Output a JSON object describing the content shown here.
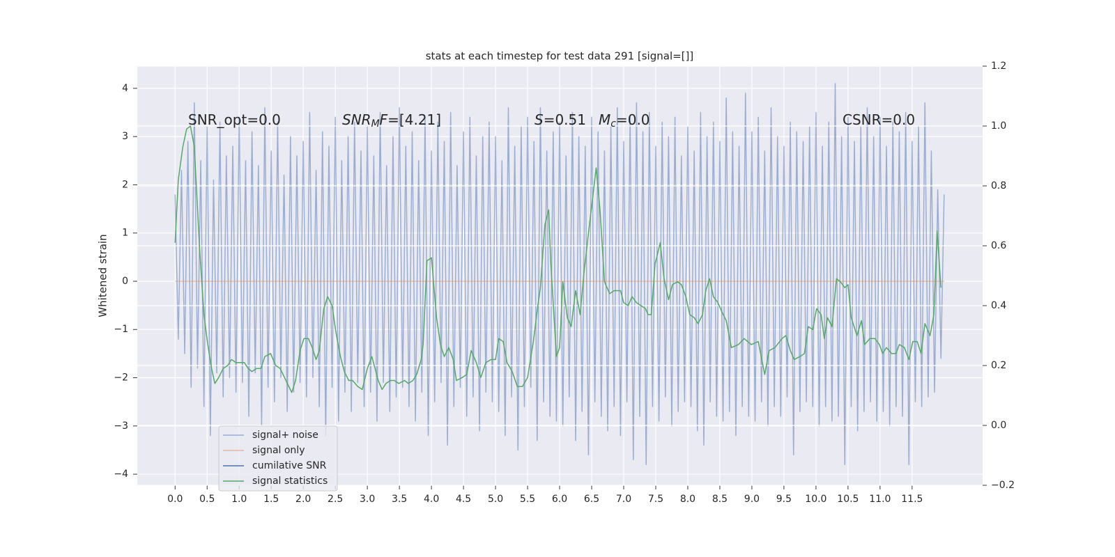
{
  "chart_data": {
    "type": "line",
    "title": "stats at each timestep for test data 291 [signal=[]]",
    "ylabel": "Whitened strain",
    "xlim": [
      -0.59,
      12.6
    ],
    "ylim": [
      -4.23,
      4.46
    ],
    "y2lim": [
      -0.2,
      1.2
    ],
    "xticks": [
      {
        "value": 0,
        "label": "0.0"
      },
      0.5,
      {
        "value": 1,
        "label": "1.0"
      },
      1.5,
      {
        "value": 2,
        "label": "2.0"
      },
      2.5,
      {
        "value": 3,
        "label": "3.0"
      },
      3.5,
      {
        "value": 4,
        "label": "4.0"
      },
      4.5,
      {
        "value": 5,
        "label": "5.0"
      },
      5.5,
      {
        "value": 6,
        "label": "6.0"
      },
      6.5,
      {
        "value": 7,
        "label": "7.0"
      },
      7.5,
      {
        "value": 8,
        "label": "8.0"
      },
      8.5,
      {
        "value": 9,
        "label": "9.0"
      },
      9.5,
      {
        "value": 10,
        "label": "10.0"
      },
      10.5,
      {
        "value": 11,
        "label": "11.0"
      },
      11.5
    ],
    "yticks": [
      {
        "value": -4,
        "label": "−4"
      },
      {
        "value": -3,
        "label": "−3"
      },
      {
        "value": -2,
        "label": "−2"
      },
      {
        "value": -1,
        "label": "−1"
      },
      0,
      1,
      2,
      3,
      4
    ],
    "y2ticks": [
      {
        "value": -0.2,
        "label": "−0.2"
      },
      {
        "value": 0,
        "label": "0.0"
      },
      0.2,
      0.4,
      0.6,
      0.8,
      {
        "value": 1,
        "label": "1.0"
      },
      1.2
    ],
    "grid": true,
    "legend_loc": "lower left",
    "annotations": [
      {
        "parts": [
          {
            "text": "SNR_opt=0.0",
            "style": "normal"
          }
        ]
      },
      {
        "parts": [
          {
            "text": "SNR",
            "style": "italic"
          },
          {
            "text": "M",
            "style": "sub"
          },
          {
            "text": "F",
            "style": "italic"
          },
          {
            "text": "=[4.21]",
            "style": "normal"
          }
        ]
      },
      {
        "parts": [
          {
            "text": "S",
            "style": "italic"
          },
          {
            "text": "=0.51",
            "style": "normal"
          }
        ]
      },
      {
        "parts": [
          {
            "text": "M",
            "style": "italic"
          },
          {
            "text": "c",
            "style": "sub"
          },
          {
            "text": "=0.0",
            "style": "normal"
          }
        ]
      },
      {
        "parts": [
          {
            "text": "CSNR=0.0",
            "style": "normal"
          }
        ]
      }
    ],
    "series": [
      {
        "name": "signal+ noise",
        "color": "#4c72b0",
        "alpha": 0.5,
        "axis": "y",
        "x": [
          0,
          0.05,
          0.1,
          0.15,
          0.2,
          0.25,
          0.3,
          0.35,
          0.4,
          0.45,
          0.5,
          0.55,
          0.6,
          0.65,
          0.7,
          0.75,
          0.8,
          0.85,
          0.9,
          0.95,
          1,
          1.05,
          1.1,
          1.15,
          1.2,
          1.25,
          1.3,
          1.35,
          1.4,
          1.45,
          1.5,
          1.55,
          1.6,
          1.65,
          1.7,
          1.75,
          1.8,
          1.85,
          1.9,
          1.95,
          2,
          2.05,
          2.1,
          2.15,
          2.2,
          2.25,
          2.3,
          2.35,
          2.4,
          2.45,
          2.5,
          2.55,
          2.6,
          2.65,
          2.7,
          2.75,
          2.8,
          2.85,
          2.9,
          2.95,
          3,
          3.05,
          3.1,
          3.15,
          3.2,
          3.25,
          3.3,
          3.35,
          3.4,
          3.45,
          3.5,
          3.55,
          3.6,
          3.65,
          3.7,
          3.75,
          3.8,
          3.85,
          3.9,
          3.95,
          4,
          4.05,
          4.1,
          4.15,
          4.2,
          4.25,
          4.3,
          4.35,
          4.4,
          4.45,
          4.5,
          4.55,
          4.6,
          4.65,
          4.7,
          4.75,
          4.8,
          4.85,
          4.9,
          4.95,
          5,
          5.05,
          5.1,
          5.15,
          5.2,
          5.25,
          5.3,
          5.35,
          5.4,
          5.45,
          5.5,
          5.55,
          5.6,
          5.65,
          5.7,
          5.75,
          5.8,
          5.85,
          5.9,
          5.95,
          6,
          6.05,
          6.1,
          6.15,
          6.2,
          6.25,
          6.3,
          6.35,
          6.4,
          6.45,
          6.5,
          6.55,
          6.6,
          6.65,
          6.7,
          6.75,
          6.8,
          6.85,
          6.9,
          6.95,
          7,
          7.05,
          7.1,
          7.15,
          7.2,
          7.25,
          7.3,
          7.35,
          7.4,
          7.45,
          7.5,
          7.55,
          7.6,
          7.65,
          7.7,
          7.75,
          7.8,
          7.85,
          7.9,
          7.95,
          8,
          8.05,
          8.1,
          8.15,
          8.2,
          8.25,
          8.3,
          8.35,
          8.4,
          8.45,
          8.5,
          8.55,
          8.6,
          8.65,
          8.7,
          8.75,
          8.8,
          8.85,
          8.9,
          8.95,
          9,
          9.05,
          9.1,
          9.15,
          9.2,
          9.25,
          9.3,
          9.35,
          9.4,
          9.45,
          9.5,
          9.55,
          9.6,
          9.65,
          9.7,
          9.75,
          9.8,
          9.85,
          9.9,
          9.95,
          10,
          10.05,
          10.1,
          10.15,
          10.2,
          10.25,
          10.3,
          10.35,
          10.4,
          10.45,
          10.5,
          10.55,
          10.6,
          10.65,
          10.7,
          10.75,
          10.8,
          10.85,
          10.9,
          10.95,
          11,
          11.05,
          11.1,
          11.15,
          11.2,
          11.25,
          11.3,
          11.35,
          11.4,
          11.45,
          11.5,
          11.55,
          11.6,
          11.65,
          11.7,
          11.75,
          11.8,
          11.85,
          11.9,
          11.95,
          12
        ],
        "values": [
          1.8,
          -1.2,
          2.3,
          -1.5,
          2.9,
          -2.2,
          3.7,
          -1.8,
          2.5,
          -2.6,
          3.2,
          -3.2,
          2.1,
          -1.9,
          3.3,
          -2.4,
          2.6,
          -2.0,
          2.8,
          -2.3,
          3.4,
          -2.1,
          2.5,
          -2.8,
          3.1,
          -1.9,
          2.4,
          -3.0,
          3.6,
          -2.2,
          2.7,
          -2.5,
          3.3,
          -2.0,
          2.2,
          -2.7,
          3.0,
          -2.3,
          2.6,
          -2.1,
          2.9,
          -2.4,
          3.5,
          -2.0,
          2.3,
          -2.6,
          3.1,
          -3.2,
          2.8,
          -2.2,
          3.4,
          -2.9,
          2.5,
          -2.3,
          3.0,
          -2.7,
          3.3,
          -2.1,
          2.7,
          -2.6,
          3.2,
          -2.3,
          2.6,
          -2.9,
          3.5,
          -2.1,
          2.4,
          -2.7,
          3.0,
          -2.4,
          3.6,
          -2.2,
          2.8,
          -2.6,
          3.1,
          -2.9,
          2.5,
          -2.3,
          3.4,
          -3.2,
          2.7,
          -2.5,
          3.3,
          -2.1,
          2.9,
          -3.4,
          3.5,
          -2.6,
          2.4,
          -2.2,
          3.1,
          -2.8,
          3.4,
          -2.4,
          2.6,
          -3.1,
          3.0,
          -2.3,
          3.3,
          -2.5,
          3.0,
          -2.7,
          2.5,
          -3.2,
          3.6,
          -2.4,
          2.8,
          -3.5,
          3.2,
          -2.6,
          3.4,
          -2.2,
          2.9,
          -3.3,
          3.6,
          -2.5,
          2.7,
          -2.8,
          3.1,
          -2.9,
          3.3,
          -3.0,
          2.6,
          -2.4,
          3.5,
          -3.3,
          3.0,
          -2.7,
          2.8,
          -3.6,
          3.4,
          -2.5,
          3.1,
          -2.8,
          2.7,
          -3.1,
          3.2,
          -2.6,
          3.6,
          -3.2,
          2.9,
          -2.5,
          3.4,
          -3.7,
          3.7,
          -2.8,
          3.1,
          -3.8,
          3.5,
          -2.6,
          2.8,
          -2.9,
          3.3,
          -2.4,
          3.0,
          -3.0,
          3.4,
          -2.7,
          2.6,
          -2.5,
          3.2,
          -2.6,
          2.7,
          -3.1,
          3.5,
          -3.4,
          3.0,
          -2.5,
          3.3,
          -2.8,
          2.9,
          -2.9,
          3.8,
          -2.7,
          3.1,
          -3.2,
          2.8,
          -2.6,
          3.9,
          -2.8,
          3.1,
          -2.9,
          3.4,
          -2.5,
          2.7,
          -3.0,
          3.6,
          -2.6,
          3.0,
          -2.8,
          2.8,
          -2.4,
          3.3,
          -3.6,
          3.1,
          -2.7,
          2.9,
          -2.5,
          3.2,
          -2.6,
          3.5,
          -3.0,
          2.8,
          -2.6,
          3.3,
          -2.9,
          4.1,
          -2.8,
          3.0,
          -3.8,
          3.4,
          -2.6,
          2.9,
          -3.1,
          3.2,
          -2.7,
          3.6,
          -2.5,
          3.0,
          -2.9,
          3.4,
          -2.7,
          2.8,
          -3.0,
          3.3,
          -2.6,
          3.1,
          -2.8,
          3.5,
          -3.8,
          2.9,
          -2.5,
          3.2,
          -2.6,
          3.7,
          -2.4,
          2.7,
          -2.3,
          1.9,
          -1.6,
          1.8
        ]
      },
      {
        "name": "signal only",
        "color": "#dd8452",
        "alpha": 0.5,
        "axis": "y",
        "x": [
          0,
          12
        ],
        "values": [
          0,
          0
        ]
      },
      {
        "name": "cumilative SNR",
        "color": "#4c72b0",
        "alpha": 1,
        "axis": "y2",
        "x": [],
        "values": []
      },
      {
        "name": "signal statistics",
        "color": "#55a868",
        "alpha": 1,
        "axis": "y2",
        "x": [
          0,
          0.05,
          0.12,
          0.18,
          0.24,
          0.3,
          0.38,
          0.45,
          0.51,
          0.57,
          0.62,
          0.68,
          0.75,
          0.82,
          0.88,
          0.95,
          1.08,
          1.14,
          1.2,
          1.27,
          1.34,
          1.4,
          1.49,
          1.57,
          1.64,
          1.73,
          1.82,
          1.88,
          1.95,
          2.01,
          2.08,
          2.14,
          2.2,
          2.25,
          2.32,
          2.38,
          2.45,
          2.51,
          2.58,
          2.64,
          2.71,
          2.77,
          2.85,
          2.92,
          3.0,
          3.07,
          3.12,
          3.17,
          3.23,
          3.29,
          3.36,
          3.42,
          3.49,
          3.58,
          3.64,
          3.71,
          3.77,
          3.84,
          3.87,
          3.93,
          4.0,
          4.08,
          4.14,
          4.2,
          4.27,
          4.34,
          4.39,
          4.48,
          4.55,
          4.62,
          4.7,
          4.77,
          4.85,
          4.93,
          5.0,
          5.05,
          5.12,
          5.18,
          5.26,
          5.34,
          5.42,
          5.5,
          5.59,
          5.66,
          5.7,
          5.77,
          5.83,
          5.86,
          5.95,
          6.0,
          6.05,
          6.12,
          6.18,
          6.25,
          6.32,
          6.38,
          6.46,
          6.51,
          6.57,
          6.63,
          6.7,
          6.78,
          6.85,
          6.95,
          7.0,
          7.07,
          7.13,
          7.2,
          7.27,
          7.34,
          7.38,
          7.43,
          7.49,
          7.57,
          7.63,
          7.7,
          7.76,
          7.84,
          7.9,
          7.97,
          8.03,
          8.1,
          8.16,
          8.23,
          8.28,
          8.34,
          8.4,
          8.47,
          8.53,
          8.6,
          8.68,
          8.79,
          8.88,
          8.99,
          9.1,
          9.2,
          9.27,
          9.36,
          9.47,
          9.53,
          9.6,
          9.66,
          9.75,
          9.82,
          9.88,
          9.95,
          10.01,
          10.08,
          10.13,
          10.18,
          10.25,
          10.32,
          10.38,
          10.45,
          10.5,
          10.55,
          10.64,
          10.71,
          10.76,
          10.84,
          10.92,
          10.99,
          11.04,
          11.1,
          11.18,
          11.25,
          11.3,
          11.38,
          11.45,
          11.51,
          11.58,
          11.64,
          11.7,
          11.78,
          11.84,
          11.89,
          11.95
        ],
        "values": [
          0.61,
          0.82,
          0.93,
          0.99,
          1.0,
          0.93,
          0.6,
          0.37,
          0.27,
          0.19,
          0.14,
          0.16,
          0.19,
          0.2,
          0.22,
          0.21,
          0.21,
          0.19,
          0.18,
          0.19,
          0.19,
          0.23,
          0.24,
          0.2,
          0.19,
          0.15,
          0.11,
          0.15,
          0.25,
          0.29,
          0.29,
          0.26,
          0.22,
          0.25,
          0.39,
          0.43,
          0.4,
          0.31,
          0.23,
          0.18,
          0.15,
          0.15,
          0.13,
          0.12,
          0.19,
          0.23,
          0.19,
          0.15,
          0.12,
          0.14,
          0.15,
          0.15,
          0.14,
          0.15,
          0.14,
          0.15,
          0.17,
          0.22,
          0.27,
          0.55,
          0.56,
          0.36,
          0.27,
          0.23,
          0.26,
          0.22,
          0.15,
          0.16,
          0.17,
          0.25,
          0.21,
          0.16,
          0.21,
          0.22,
          0.22,
          0.29,
          0.28,
          0.21,
          0.18,
          0.13,
          0.13,
          0.16,
          0.28,
          0.4,
          0.46,
          0.67,
          0.72,
          0.55,
          0.23,
          0.26,
          0.48,
          0.36,
          0.33,
          0.45,
          0.37,
          0.51,
          0.66,
          0.75,
          0.86,
          0.72,
          0.48,
          0.44,
          0.45,
          0.45,
          0.41,
          0.4,
          0.43,
          0.41,
          0.4,
          0.39,
          0.37,
          0.37,
          0.54,
          0.61,
          0.49,
          0.42,
          0.47,
          0.48,
          0.47,
          0.43,
          0.37,
          0.36,
          0.34,
          0.37,
          0.45,
          0.49,
          0.43,
          0.41,
          0.38,
          0.35,
          0.26,
          0.27,
          0.29,
          0.27,
          0.28,
          0.17,
          0.25,
          0.26,
          0.29,
          0.3,
          0.25,
          0.22,
          0.23,
          0.24,
          0.33,
          0.32,
          0.39,
          0.37,
          0.29,
          0.36,
          0.33,
          0.49,
          0.48,
          0.46,
          0.47,
          0.36,
          0.3,
          0.35,
          0.27,
          0.29,
          0.29,
          0.27,
          0.24,
          0.26,
          0.24,
          0.24,
          0.27,
          0.26,
          0.22,
          0.28,
          0.28,
          0.24,
          0.34,
          0.3,
          0.37,
          0.65,
          0.46
        ]
      }
    ]
  }
}
